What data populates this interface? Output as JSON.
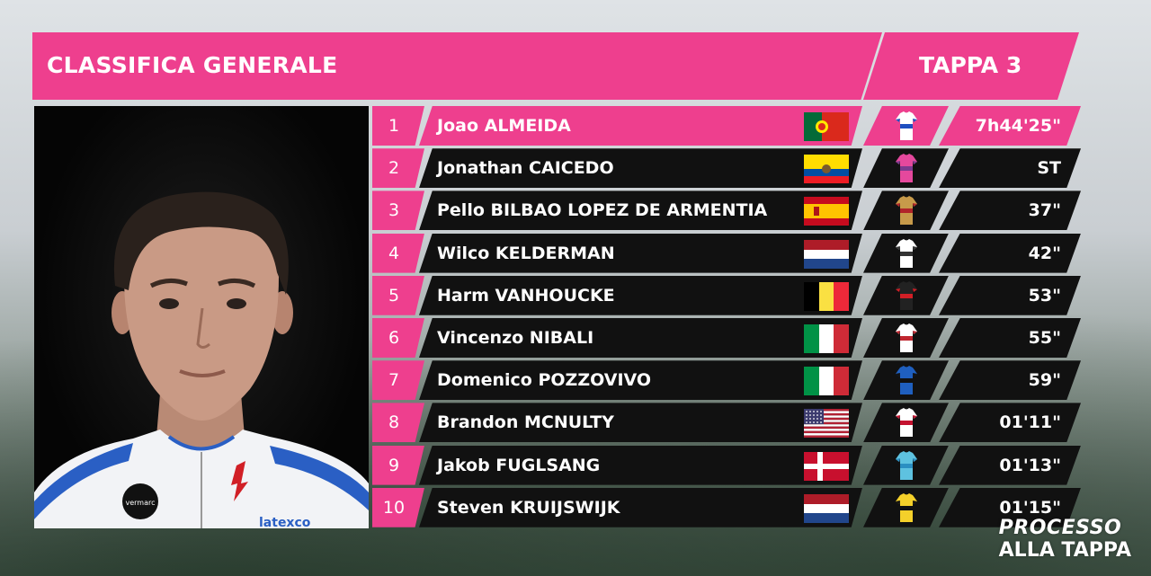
{
  "header": {
    "title": "CLASSIFICA GENERALE",
    "stage": "TAPPA 3"
  },
  "colors": {
    "accent": "#ee3f8e",
    "row_bg": "#111111"
  },
  "rows": [
    {
      "rank": "1",
      "name": "Joao ALMEIDA",
      "flag": "portugal",
      "team": "DQT",
      "time": "7h44'25\""
    },
    {
      "rank": "2",
      "name": "Jonathan CAICEDO",
      "flag": "ecuador",
      "team": "EF1",
      "time": "ST"
    },
    {
      "rank": "3",
      "name": "Pello BILBAO LOPEZ DE ARMENTIA",
      "flag": "spain",
      "team": "TBM",
      "time": "37\""
    },
    {
      "rank": "4",
      "name": "Wilco KELDERMAN",
      "flag": "netherlands",
      "team": "SUN",
      "time": "42\""
    },
    {
      "rank": "5",
      "name": "Harm VANHOUCKE",
      "flag": "belgium",
      "team": "LTS",
      "time": "53\""
    },
    {
      "rank": "6",
      "name": "Vincenzo NIBALI",
      "flag": "italy",
      "team": "TFS",
      "time": "55\""
    },
    {
      "rank": "7",
      "name": "Domenico POZZOVIVO",
      "flag": "italy",
      "team": "NTT",
      "time": "59\""
    },
    {
      "rank": "8",
      "name": "Brandon MCNULTY",
      "flag": "usa",
      "team": "UAD",
      "time": "01'11\""
    },
    {
      "rank": "9",
      "name": "Jakob FUGLSANG",
      "flag": "denmark",
      "team": "AST",
      "time": "01'13\""
    },
    {
      "rank": "10",
      "name": "Steven KRUIJSWIJK",
      "flag": "netherlands",
      "team": "TJV",
      "time": "01'15\""
    }
  ],
  "photo_text": {
    "sponsor": "latexco",
    "brand": "vermarc"
  },
  "logo": {
    "line1": "PROCESSO",
    "line2": "ALLA TAPPA"
  }
}
